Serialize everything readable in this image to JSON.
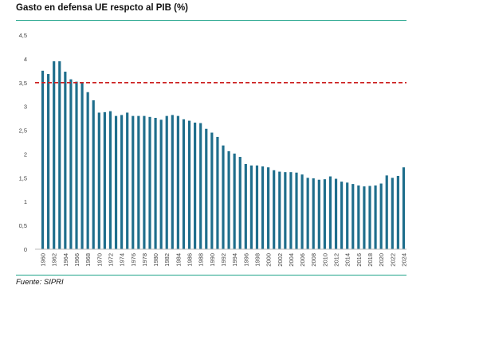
{
  "title": "Gasto en defensa UE respcto al PIB (%)",
  "source": "Fuente: SIPRI",
  "colors": {
    "bar": "#1f6e8c",
    "reference_line": "#cc1f1f",
    "rule": "#1fa38a",
    "axis": "#bbbbbb"
  },
  "chart_data": {
    "type": "bar",
    "categories": [
      "1960",
      "1961",
      "1962",
      "1963",
      "1964",
      "1965",
      "1966",
      "1967",
      "1968",
      "1969",
      "1970",
      "1971",
      "1972",
      "1973",
      "1974",
      "1975",
      "1976",
      "1977",
      "1978",
      "1979",
      "1980",
      "1981",
      "1982",
      "1983",
      "1984",
      "1985",
      "1986",
      "1987",
      "1988",
      "1989",
      "1990",
      "1991",
      "1992",
      "1993",
      "1994",
      "1995",
      "1996",
      "1997",
      "1998",
      "1999",
      "2000",
      "2001",
      "2002",
      "2003",
      "2004",
      "2005",
      "2006",
      "2007",
      "2008",
      "2009",
      "2010",
      "2011",
      "2012",
      "2013",
      "2014",
      "2015",
      "2016",
      "2017",
      "2018",
      "2019",
      "2020",
      "2021",
      "2022",
      "2023",
      "2024"
    ],
    "x_tick_labels": [
      "1960",
      "1962",
      "1964",
      "1966",
      "1968",
      "1970",
      "1972",
      "1974",
      "1976",
      "1978",
      "1980",
      "1982",
      "1984",
      "1986",
      "1988",
      "1990",
      "1992",
      "1994",
      "1996",
      "1998",
      "2000",
      "2002",
      "2004",
      "2006",
      "2008",
      "2010",
      "2012",
      "2014",
      "2016",
      "2018",
      "2020",
      "2022",
      "2024"
    ],
    "values": [
      3.75,
      3.68,
      3.95,
      3.95,
      3.73,
      3.57,
      3.52,
      3.5,
      3.3,
      3.13,
      2.87,
      2.88,
      2.9,
      2.8,
      2.82,
      2.87,
      2.8,
      2.8,
      2.8,
      2.78,
      2.76,
      2.72,
      2.8,
      2.82,
      2.8,
      2.73,
      2.7,
      2.66,
      2.65,
      2.53,
      2.45,
      2.36,
      2.18,
      2.06,
      2.01,
      1.94,
      1.79,
      1.76,
      1.76,
      1.74,
      1.72,
      1.66,
      1.63,
      1.62,
      1.62,
      1.61,
      1.57,
      1.5,
      1.49,
      1.46,
      1.47,
      1.53,
      1.48,
      1.42,
      1.4,
      1.37,
      1.34,
      1.32,
      1.33,
      1.34,
      1.38,
      1.55,
      1.5,
      1.54,
      1.72
    ],
    "reference_line": {
      "value": 3.5,
      "style": "dashed"
    },
    "ylim": [
      0,
      4.5
    ],
    "y_ticks": [
      0,
      0.5,
      1,
      1.5,
      2,
      2.5,
      3,
      3.5,
      4,
      4.5
    ],
    "y_tick_labels": [
      "0",
      "0,5",
      "1",
      "1,5",
      "2",
      "2,5",
      "3",
      "3,5",
      "4",
      "4,5"
    ],
    "grid": false,
    "legend": "none"
  }
}
